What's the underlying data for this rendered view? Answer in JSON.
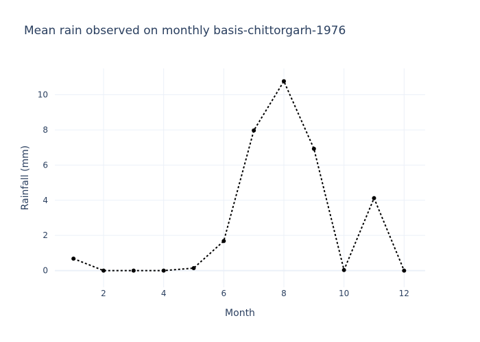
{
  "chart_data": {
    "type": "line",
    "title": "Mean rain observed on monthly basis-chittorgarh-1976",
    "xlabel": "Month",
    "ylabel": "Rainfall (mm)",
    "x": [
      1,
      2,
      3,
      4,
      5,
      6,
      7,
      8,
      9,
      10,
      11,
      12
    ],
    "series": [
      {
        "values": [
          0.68,
          0.0,
          0.0,
          0.0,
          0.14,
          1.68,
          7.97,
          10.77,
          6.93,
          0.03,
          4.12,
          0.0
        ]
      }
    ],
    "xlim": [
      0.38,
      12.7
    ],
    "ylim": [
      -0.95,
      11.5
    ],
    "xticks": [
      2,
      4,
      6,
      8,
      10,
      12
    ],
    "yticks": [
      0,
      2,
      4,
      6,
      8,
      10
    ],
    "line_style": "dotted",
    "marker": "circle",
    "line_color": "#000000",
    "grid": true,
    "background": "#ffffff"
  }
}
